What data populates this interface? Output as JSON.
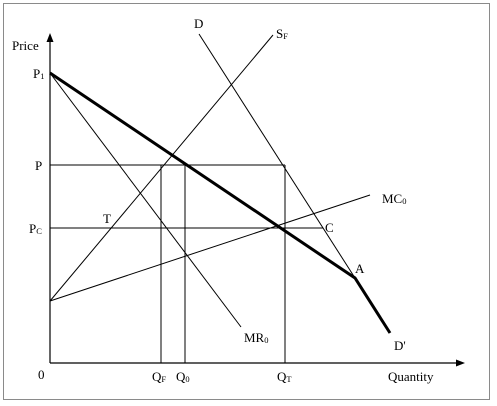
{
  "axes": {
    "y_label": "Price",
    "x_label": "Quantity",
    "origin": "0"
  },
  "price_labels": [
    {
      "base": "P",
      "sub": "1"
    },
    {
      "base": "P",
      "sub": ""
    },
    {
      "base": "P",
      "sub": "C"
    }
  ],
  "quantity_labels": [
    {
      "base": "Q",
      "sub": "F"
    },
    {
      "base": "Q",
      "sub": "0"
    },
    {
      "base": "Q",
      "sub": "T"
    }
  ],
  "curve_labels": {
    "D": "D",
    "SF": {
      "base": "S",
      "sub": "F"
    },
    "MC0": {
      "base": "MC",
      "sub": "0"
    },
    "MR0": {
      "base": "MR",
      "sub": "0"
    },
    "Dprime": "D'"
  },
  "point_labels": {
    "T": "T",
    "C": "C",
    "A": "A"
  },
  "colors": {
    "line": "#000000",
    "frame": "#8a8a8a"
  }
}
